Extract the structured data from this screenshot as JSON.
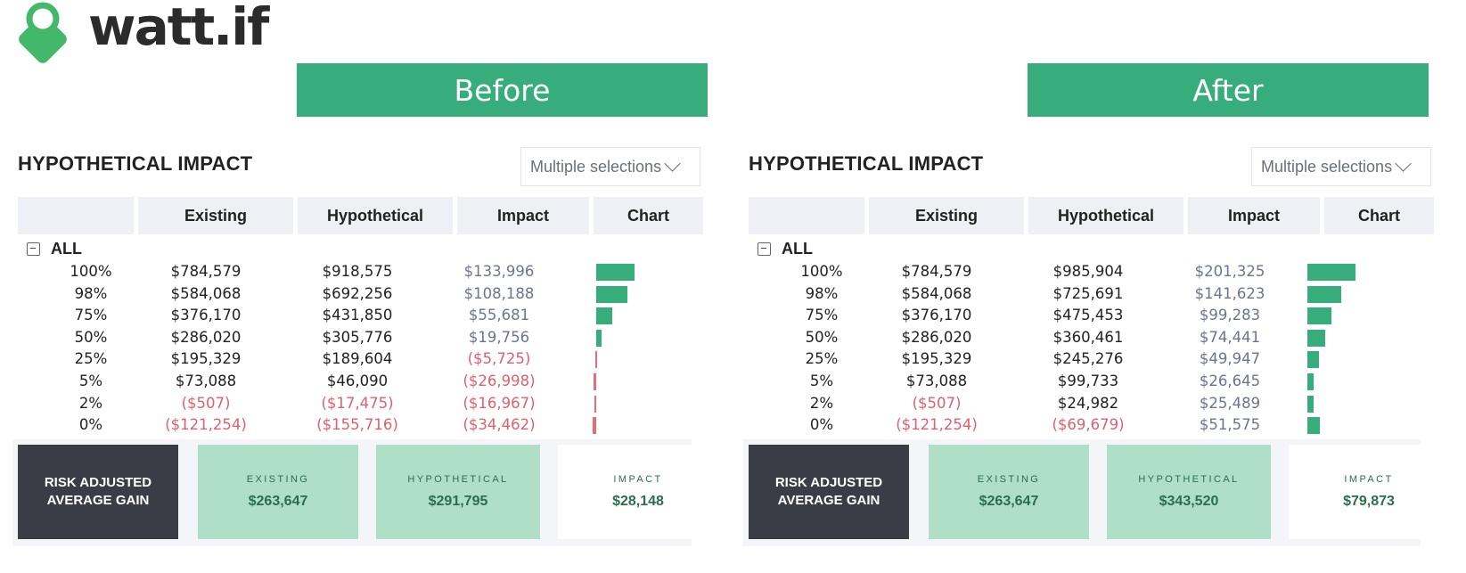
{
  "logo": {
    "text": "watt.if"
  },
  "banners": {
    "before": "Before",
    "after": "After"
  },
  "colors": {
    "accent_green": "#36ad7a",
    "negative_red": "#e46d78",
    "dark_card": "#3b3d46",
    "light_green_card": "#afdfc7"
  },
  "panels": [
    {
      "title": "HYPOTHETICAL IMPACT",
      "dropdown": "Multiple selections",
      "headers": [
        "Existing",
        "Hypothetical",
        "Impact",
        "Chart"
      ],
      "group": "ALL",
      "rows": [
        {
          "pct": "100%",
          "existing": "$784,579",
          "hypothetical": "$918,575",
          "impact": "$133,996",
          "impact_value": 133996
        },
        {
          "pct": "98%",
          "existing": "$584,068",
          "hypothetical": "$692,256",
          "impact": "$108,188",
          "impact_value": 108188
        },
        {
          "pct": "75%",
          "existing": "$376,170",
          "hypothetical": "$431,850",
          "impact": "$55,681",
          "impact_value": 55681
        },
        {
          "pct": "50%",
          "existing": "$286,020",
          "hypothetical": "$305,776",
          "impact": "$19,756",
          "impact_value": 19756
        },
        {
          "pct": "25%",
          "existing": "$195,329",
          "hypothetical": "$189,604",
          "impact": "($5,725)",
          "impact_value": -5725
        },
        {
          "pct": "5%",
          "existing": "$73,088",
          "hypothetical": "$46,090",
          "impact": "($26,998)",
          "impact_value": -26998
        },
        {
          "pct": "2%",
          "existing": "($507)",
          "hypothetical": "($17,475)",
          "impact": "($16,967)",
          "impact_value": -16967
        },
        {
          "pct": "0%",
          "existing": "($121,254)",
          "hypothetical": "($155,716)",
          "impact": "($34,462)",
          "impact_value": -34462
        }
      ],
      "summary": {
        "title_line1": "RISK ADJUSTED",
        "title_line2": "AVERAGE GAIN",
        "existing_label": "EXISTING",
        "existing_value": "$263,647",
        "hypothetical_label": "HYPOTHETICAL",
        "hypothetical_value": "$291,795",
        "impact_label": "IMPACT",
        "impact_value": "$28,148"
      }
    },
    {
      "title": "HYPOTHETICAL IMPACT",
      "dropdown": "Multiple selections",
      "headers": [
        "Existing",
        "Hypothetical",
        "Impact",
        "Chart"
      ],
      "group": "ALL",
      "rows": [
        {
          "pct": "100%",
          "existing": "$784,579",
          "hypothetical": "$985,904",
          "impact": "$201,325",
          "impact_value": 201325
        },
        {
          "pct": "98%",
          "existing": "$584,068",
          "hypothetical": "$725,691",
          "impact": "$141,623",
          "impact_value": 141623
        },
        {
          "pct": "75%",
          "existing": "$376,170",
          "hypothetical": "$475,453",
          "impact": "$99,283",
          "impact_value": 99283
        },
        {
          "pct": "50%",
          "existing": "$286,020",
          "hypothetical": "$360,461",
          "impact": "$74,441",
          "impact_value": 74441
        },
        {
          "pct": "25%",
          "existing": "$195,329",
          "hypothetical": "$245,276",
          "impact": "$49,947",
          "impact_value": 49947
        },
        {
          "pct": "5%",
          "existing": "$73,088",
          "hypothetical": "$99,733",
          "impact": "$26,645",
          "impact_value": 26645
        },
        {
          "pct": "2%",
          "existing": "($507)",
          "hypothetical": "$24,982",
          "impact": "$25,489",
          "impact_value": 25489
        },
        {
          "pct": "0%",
          "existing": "($121,254)",
          "hypothetical": "($69,679)",
          "impact": "$51,575",
          "impact_value": 51575
        }
      ],
      "summary": {
        "title_line1": "RISK ADJUSTED",
        "title_line2": "AVERAGE GAIN",
        "existing_label": "EXISTING",
        "existing_value": "$263,647",
        "hypothetical_label": "HYPOTHETICAL",
        "hypothetical_value": "$343,520",
        "impact_label": "IMPACT",
        "impact_value": "$79,873"
      }
    }
  ]
}
